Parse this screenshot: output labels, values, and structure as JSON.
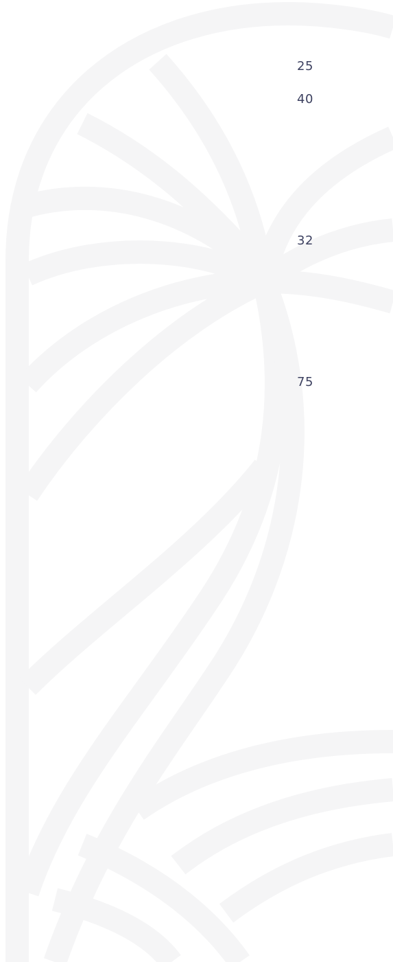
{
  "items": [
    "25",
    "40",
    "32",
    "75"
  ]
}
